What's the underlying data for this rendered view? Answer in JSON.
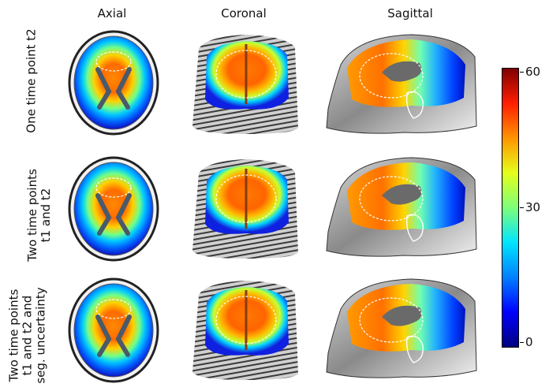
{
  "columns": [
    "Axial",
    "Coronal",
    "Sagittal"
  ],
  "rows": [
    {
      "line1": "One time point t2",
      "line2": "",
      "line3": ""
    },
    {
      "line1": "Two time points",
      "line2": "t1 and t2",
      "line3": ""
    },
    {
      "line1": "Two time points",
      "line2": "t1 and t2 and",
      "line3": "seg. uncertainty"
    }
  ],
  "colorbar": {
    "ticks": [
      "60",
      "30",
      "0"
    ],
    "colors": [
      "#00007f",
      "#0000ff",
      "#0080ff",
      "#00e5ff",
      "#7dff7a",
      "#e5ff1a",
      "#ff9400",
      "#ff1e00",
      "#7f0000"
    ]
  }
}
